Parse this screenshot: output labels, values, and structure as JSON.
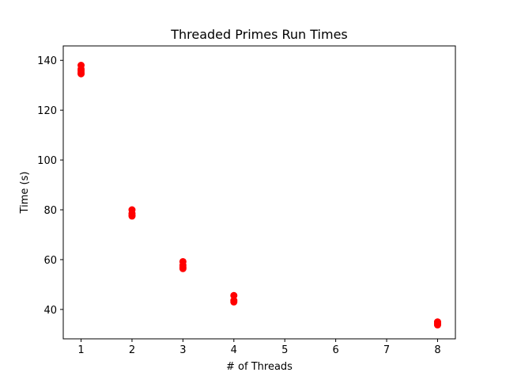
{
  "chart_data": {
    "type": "scatter",
    "title": "Threaded Primes Run Times",
    "xlabel": "# of Threads",
    "ylabel": "Time (s)",
    "xlim": [
      0.65,
      8.35
    ],
    "ylim": [
      28.2,
      145.8
    ],
    "xticks": [
      1,
      2,
      3,
      4,
      5,
      6,
      7,
      8
    ],
    "yticks": [
      40,
      60,
      80,
      100,
      120,
      140
    ],
    "grid": false,
    "legend": "none",
    "marker_color": "#ff0000",
    "series": [
      {
        "points": [
          {
            "x": 1,
            "y": 138.0
          },
          {
            "x": 1,
            "y": 136.5
          },
          {
            "x": 1,
            "y": 135.8
          },
          {
            "x": 1,
            "y": 135.0
          },
          {
            "x": 1,
            "y": 134.6
          },
          {
            "x": 2,
            "y": 80.0
          },
          {
            "x": 2,
            "y": 78.5
          },
          {
            "x": 2,
            "y": 77.8
          },
          {
            "x": 2,
            "y": 77.5
          },
          {
            "x": 3,
            "y": 59.2
          },
          {
            "x": 3,
            "y": 57.8
          },
          {
            "x": 3,
            "y": 57.0
          },
          {
            "x": 3,
            "y": 56.4
          },
          {
            "x": 4,
            "y": 45.6
          },
          {
            "x": 4,
            "y": 43.6
          },
          {
            "x": 4,
            "y": 43.0
          },
          {
            "x": 8,
            "y": 35.0
          },
          {
            "x": 8,
            "y": 34.5
          },
          {
            "x": 8,
            "y": 34.0
          },
          {
            "x": 8,
            "y": 33.8
          }
        ]
      }
    ]
  }
}
